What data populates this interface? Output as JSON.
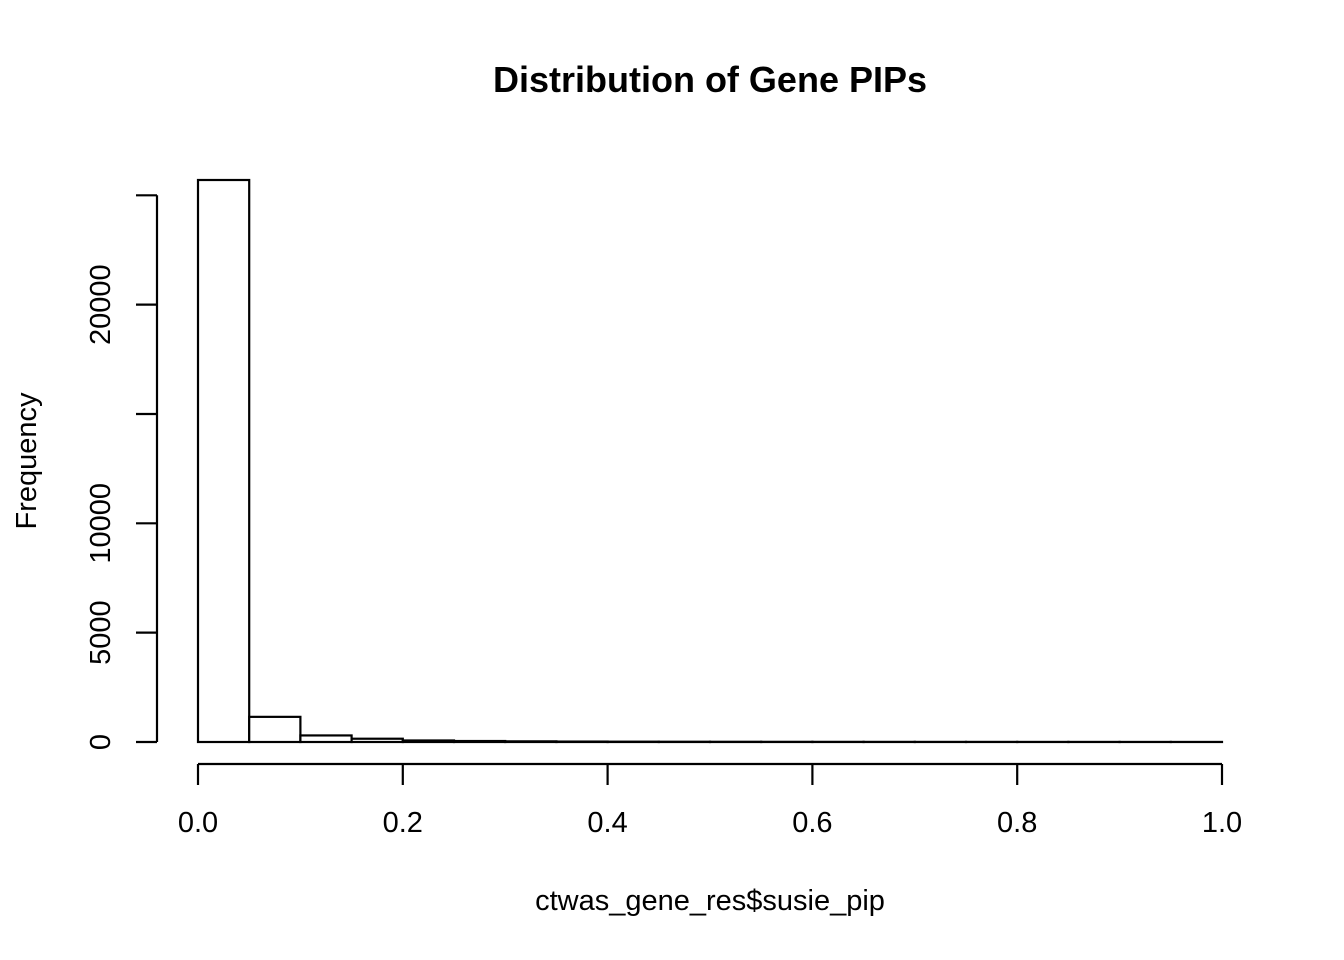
{
  "chart_data": {
    "type": "bar",
    "subtype": "histogram",
    "title": "Distribution of Gene PIPs",
    "xlabel": "ctwas_gene_res$susie_pip",
    "ylabel": "Frequency",
    "bin_edges": [
      0.0,
      0.05,
      0.1,
      0.15,
      0.2,
      0.25,
      0.3,
      0.35,
      0.4,
      0.45,
      0.5,
      0.55,
      0.6,
      0.65,
      0.7,
      0.75,
      0.8,
      0.85,
      0.9,
      0.95,
      1.0
    ],
    "values": [
      25700,
      1150,
      300,
      150,
      70,
      45,
      30,
      20,
      15,
      12,
      10,
      8,
      7,
      6,
      5,
      5,
      4,
      4,
      3,
      3
    ],
    "xlim": [
      0.0,
      1.0
    ],
    "ylim": [
      0,
      25700
    ],
    "x_ticks": [
      0.0,
      0.2,
      0.4,
      0.6,
      0.8,
      1.0
    ],
    "x_tick_labels": [
      "0.0",
      "0.2",
      "0.4",
      "0.6",
      "0.8",
      "1.0"
    ],
    "y_ticks": [
      0,
      5000,
      10000,
      15000,
      20000,
      25000
    ],
    "y_tick_labels": [
      "0",
      "5000",
      "10000",
      "",
      "20000",
      ""
    ],
    "grid": false,
    "legend": "none",
    "bar_fill": "#ffffff",
    "bar_stroke": "#000000"
  }
}
